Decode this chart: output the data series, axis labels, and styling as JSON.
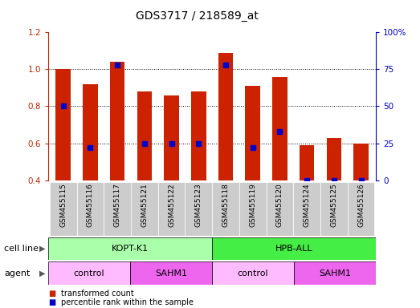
{
  "title": "GDS3717 / 218589_at",
  "samples": [
    "GSM455115",
    "GSM455116",
    "GSM455117",
    "GSM455121",
    "GSM455122",
    "GSM455123",
    "GSM455118",
    "GSM455119",
    "GSM455120",
    "GSM455124",
    "GSM455125",
    "GSM455126"
  ],
  "bar_values": [
    1.0,
    0.92,
    1.04,
    0.88,
    0.86,
    0.88,
    1.09,
    0.91,
    0.96,
    0.59,
    0.63,
    0.6
  ],
  "dot_percentiles": [
    50,
    22,
    78,
    25,
    25,
    25,
    78,
    22,
    33,
    0,
    0,
    0
  ],
  "ylim_left": [
    0.4,
    1.2
  ],
  "ylim_right": [
    0,
    100
  ],
  "yticks_left": [
    0.4,
    0.6,
    0.8,
    1.0,
    1.2
  ],
  "yticks_right": [
    0,
    25,
    50,
    75,
    100
  ],
  "bar_color": "#cc2200",
  "dot_color": "#0000cc",
  "cell_line_groups": [
    {
      "label": "KOPT-K1",
      "start": 0,
      "end": 6,
      "color": "#aaffaa"
    },
    {
      "label": "HPB-ALL",
      "start": 6,
      "end": 12,
      "color": "#44ee44"
    }
  ],
  "agent_groups": [
    {
      "label": "control",
      "start": 0,
      "end": 3,
      "color": "#ffbbff"
    },
    {
      "label": "SAHM1",
      "start": 3,
      "end": 6,
      "color": "#ee66ee"
    },
    {
      "label": "control",
      "start": 6,
      "end": 9,
      "color": "#ffbbff"
    },
    {
      "label": "SAHM1",
      "start": 9,
      "end": 12,
      "color": "#ee66ee"
    }
  ],
  "legend_items": [
    {
      "label": "transformed count",
      "color": "#cc2200"
    },
    {
      "label": "percentile rank within the sample",
      "color": "#0000cc"
    }
  ],
  "cell_line_label": "cell line",
  "agent_label": "agent",
  "tick_area_bg": "#cccccc",
  "grid_lines": [
    0.6,
    0.8,
    1.0
  ]
}
